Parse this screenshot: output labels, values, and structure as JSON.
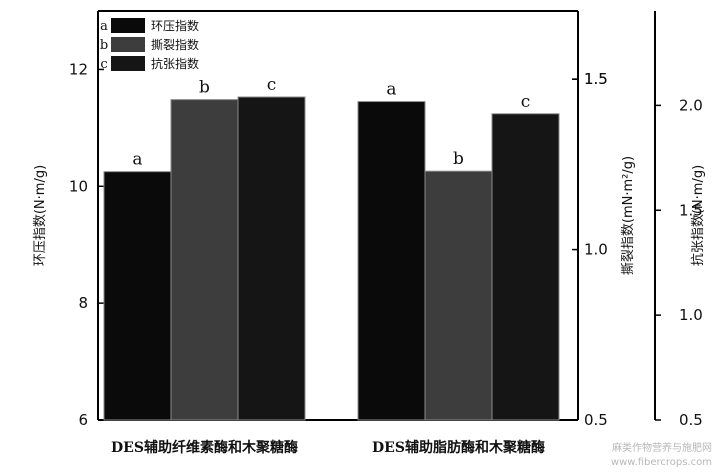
{
  "chart_data": {
    "type": "bar",
    "categories": [
      "DES辅助纤维素酶和木聚糖酶",
      "DES辅助脂肪酶和木聚糖酶"
    ],
    "series": [
      {
        "name": "环压指数",
        "letter": "a",
        "axis": "left",
        "color": "#0a0a0a",
        "values": [
          10.25,
          11.45
        ],
        "labels": [
          "a",
          "a"
        ]
      },
      {
        "name": "撕裂指数",
        "letter": "b",
        "axis": "right1",
        "color": "#3d3d3d",
        "values": [
          1.44,
          1.23
        ],
        "labels": [
          "b",
          "b"
        ]
      },
      {
        "name": "抗张指数",
        "letter": "c",
        "axis": "right2",
        "color": "#151515",
        "values": [
          2.04,
          1.96
        ],
        "labels": [
          "c",
          "c"
        ]
      }
    ],
    "axes": {
      "left": {
        "label": "环压指数(N·m/g)",
        "ylim": [
          6,
          13.0
        ],
        "ticks": [
          6,
          8,
          10,
          12
        ]
      },
      "right1": {
        "label": "撕裂指数(mN·m²/g)",
        "ylim": [
          0.5,
          1.7
        ],
        "ticks": [
          0.5,
          1.0,
          1.5,
          1.5
        ]
      },
      "right2": {
        "label": "抗张指数(N·m/g)",
        "ylim": [
          0.5,
          2.45
        ],
        "ticks": [
          0.5,
          1.0,
          1.5,
          2.0
        ]
      }
    },
    "grid": false,
    "legend_position": "top-left"
  },
  "watermark": {
    "line1": "麻类作物营养与施肥网",
    "line2": "www.fibercrops.com"
  }
}
